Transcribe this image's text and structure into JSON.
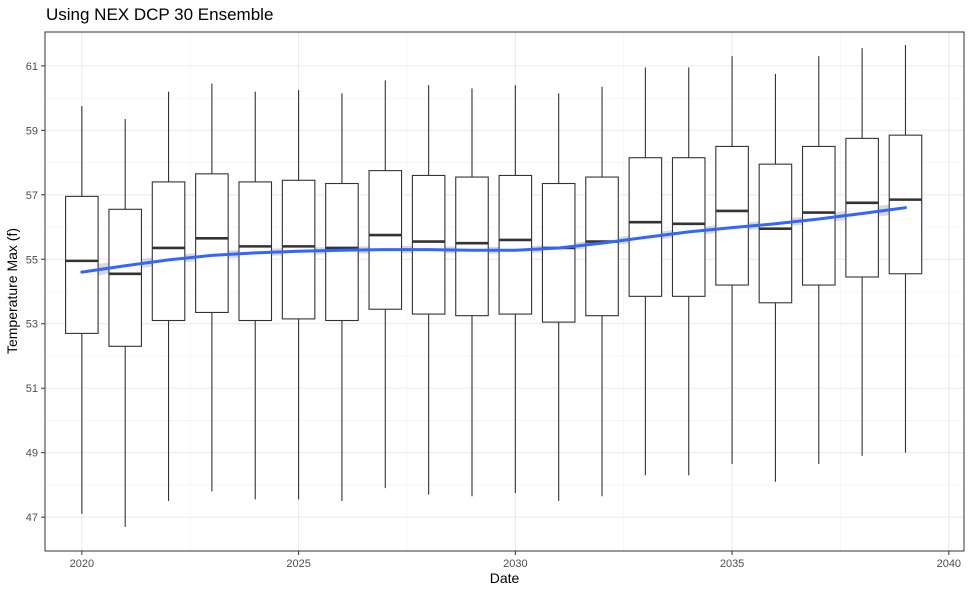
{
  "chart_data": {
    "type": "boxplot",
    "title": "Using NEX DCP 30 Ensemble",
    "xlabel": "Date",
    "ylabel": "Temperature Max (f)",
    "xlim": [
      2019.15,
      2040.35
    ],
    "ylim": [
      45.95,
      62.05
    ],
    "x_ticks": [
      2020,
      2025,
      2030,
      2035,
      2040
    ],
    "y_ticks": [
      47,
      49,
      51,
      53,
      55,
      57,
      59,
      61
    ],
    "grid": true,
    "theme": "bw",
    "boxes": [
      {
        "x": 2020,
        "min": 47.1,
        "q1": 52.7,
        "median": 54.95,
        "q3": 56.95,
        "max": 59.75
      },
      {
        "x": 2021,
        "min": 46.7,
        "q1": 52.3,
        "median": 54.55,
        "q3": 56.55,
        "max": 59.35
      },
      {
        "x": 2022,
        "min": 47.5,
        "q1": 53.1,
        "median": 55.35,
        "q3": 57.4,
        "max": 60.2
      },
      {
        "x": 2023,
        "min": 47.8,
        "q1": 53.35,
        "median": 55.65,
        "q3": 57.65,
        "max": 60.45
      },
      {
        "x": 2024,
        "min": 47.55,
        "q1": 53.1,
        "median": 55.4,
        "q3": 57.4,
        "max": 60.2
      },
      {
        "x": 2025,
        "min": 47.55,
        "q1": 53.15,
        "median": 55.4,
        "q3": 57.45,
        "max": 60.25
      },
      {
        "x": 2026,
        "min": 47.5,
        "q1": 53.1,
        "median": 55.35,
        "q3": 57.35,
        "max": 60.15
      },
      {
        "x": 2027,
        "min": 47.9,
        "q1": 53.45,
        "median": 55.75,
        "q3": 57.75,
        "max": 60.55
      },
      {
        "x": 2028,
        "min": 47.7,
        "q1": 53.3,
        "median": 55.55,
        "q3": 57.6,
        "max": 60.4
      },
      {
        "x": 2029,
        "min": 47.65,
        "q1": 53.25,
        "median": 55.5,
        "q3": 57.55,
        "max": 60.3
      },
      {
        "x": 2030,
        "min": 47.75,
        "q1": 53.3,
        "median": 55.6,
        "q3": 57.6,
        "max": 60.4
      },
      {
        "x": 2031,
        "min": 47.5,
        "q1": 53.05,
        "median": 55.35,
        "q3": 57.35,
        "max": 60.15
      },
      {
        "x": 2032,
        "min": 47.65,
        "q1": 53.25,
        "median": 55.55,
        "q3": 57.55,
        "max": 60.35
      },
      {
        "x": 2033,
        "min": 48.3,
        "q1": 53.85,
        "median": 56.15,
        "q3": 58.15,
        "max": 60.95
      },
      {
        "x": 2034,
        "min": 48.3,
        "q1": 53.85,
        "median": 56.1,
        "q3": 58.15,
        "max": 60.95
      },
      {
        "x": 2035,
        "min": 48.65,
        "q1": 54.2,
        "median": 56.5,
        "q3": 58.5,
        "max": 61.3
      },
      {
        "x": 2036,
        "min": 48.1,
        "q1": 53.65,
        "median": 55.95,
        "q3": 57.95,
        "max": 60.75
      },
      {
        "x": 2037,
        "min": 48.65,
        "q1": 54.2,
        "median": 56.45,
        "q3": 58.5,
        "max": 61.3
      },
      {
        "x": 2038,
        "min": 48.9,
        "q1": 54.45,
        "median": 56.75,
        "q3": 58.75,
        "max": 61.55
      },
      {
        "x": 2039,
        "min": 49.0,
        "q1": 54.55,
        "median": 56.85,
        "q3": 58.85,
        "max": 61.65
      }
    ],
    "smooth": {
      "color": "#3366ff",
      "band_color": "#bfbfbf",
      "points": [
        {
          "x": 2020,
          "y": 54.6,
          "lo": 54.4,
          "hi": 54.8
        },
        {
          "x": 2021,
          "y": 54.8,
          "lo": 54.65,
          "hi": 54.95
        },
        {
          "x": 2022,
          "y": 54.98,
          "lo": 54.85,
          "hi": 55.11
        },
        {
          "x": 2023,
          "y": 55.12,
          "lo": 55.0,
          "hi": 55.24
        },
        {
          "x": 2024,
          "y": 55.2,
          "lo": 55.08,
          "hi": 55.32
        },
        {
          "x": 2025,
          "y": 55.25,
          "lo": 55.14,
          "hi": 55.36
        },
        {
          "x": 2026,
          "y": 55.28,
          "lo": 55.17,
          "hi": 55.39
        },
        {
          "x": 2027,
          "y": 55.3,
          "lo": 55.19,
          "hi": 55.41
        },
        {
          "x": 2028,
          "y": 55.3,
          "lo": 55.19,
          "hi": 55.41
        },
        {
          "x": 2029,
          "y": 55.28,
          "lo": 55.17,
          "hi": 55.39
        },
        {
          "x": 2030,
          "y": 55.28,
          "lo": 55.17,
          "hi": 55.39
        },
        {
          "x": 2031,
          "y": 55.35,
          "lo": 55.24,
          "hi": 55.46
        },
        {
          "x": 2032,
          "y": 55.5,
          "lo": 55.39,
          "hi": 55.61
        },
        {
          "x": 2033,
          "y": 55.68,
          "lo": 55.56,
          "hi": 55.8
        },
        {
          "x": 2034,
          "y": 55.85,
          "lo": 55.73,
          "hi": 55.97
        },
        {
          "x": 2035,
          "y": 55.98,
          "lo": 55.86,
          "hi": 56.1
        },
        {
          "x": 2036,
          "y": 56.1,
          "lo": 55.98,
          "hi": 56.22
        },
        {
          "x": 2037,
          "y": 56.25,
          "lo": 56.12,
          "hi": 56.38
        },
        {
          "x": 2038,
          "y": 56.42,
          "lo": 56.27,
          "hi": 56.57
        },
        {
          "x": 2039,
          "y": 56.6,
          "lo": 56.42,
          "hi": 56.78
        }
      ]
    }
  }
}
